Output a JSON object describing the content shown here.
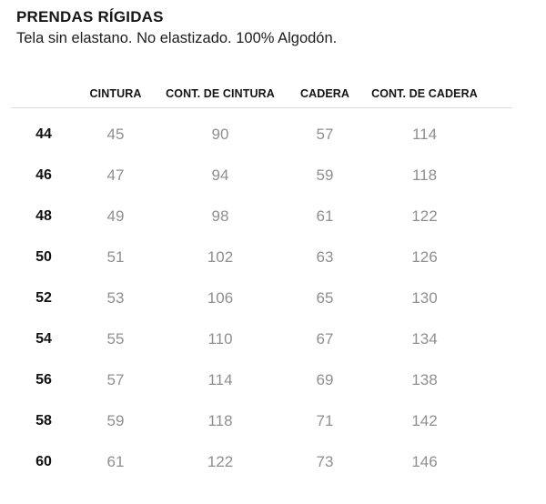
{
  "page": {
    "title": "PRENDAS RÍGIDAS",
    "subtitle": "Tela sin elastano. No elastizado. 100% Algodón."
  },
  "table": {
    "columns": [
      "CINTURA",
      "CONT. DE CINTURA",
      "CADERA",
      "CONT. DE CADERA"
    ],
    "rows": [
      {
        "size": "44",
        "cintura": "45",
        "cont_cintura": "90",
        "cadera": "57",
        "cont_cadera": "114"
      },
      {
        "size": "46",
        "cintura": "47",
        "cont_cintura": "94",
        "cadera": "59",
        "cont_cadera": "118"
      },
      {
        "size": "48",
        "cintura": "49",
        "cont_cintura": "98",
        "cadera": "61",
        "cont_cadera": "122"
      },
      {
        "size": "50",
        "cintura": "51",
        "cont_cintura": "102",
        "cadera": "63",
        "cont_cadera": "126"
      },
      {
        "size": "52",
        "cintura": "53",
        "cont_cintura": "106",
        "cadera": "65",
        "cont_cadera": "130"
      },
      {
        "size": "54",
        "cintura": "55",
        "cont_cintura": "110",
        "cadera": "67",
        "cont_cadera": "134"
      },
      {
        "size": "56",
        "cintura": "57",
        "cont_cintura": "114",
        "cadera": "69",
        "cont_cadera": "138"
      },
      {
        "size": "58",
        "cintura": "59",
        "cont_cintura": "118",
        "cadera": "71",
        "cont_cadera": "142"
      },
      {
        "size": "60",
        "cintura": "61",
        "cont_cintura": "122",
        "cadera": "73",
        "cont_cadera": "146"
      }
    ]
  },
  "colors": {
    "text": "#161616",
    "value_muted": "#8f8f8f",
    "divider": "#dbdbdb",
    "background": "#ffffff"
  }
}
